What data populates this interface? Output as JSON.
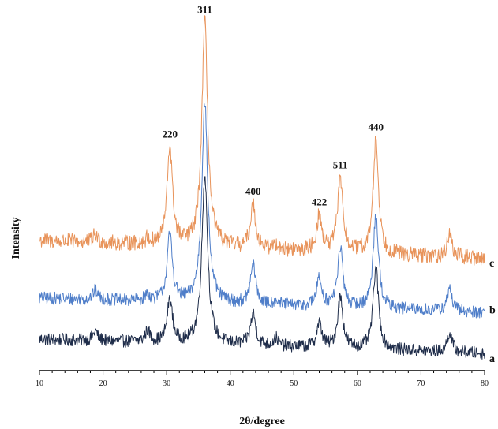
{
  "chart_data": {
    "type": "line",
    "title": "",
    "xlabel": "2θ/degree",
    "ylabel": "Intensity",
    "xlim": [
      10,
      80
    ],
    "x_ticks": [
      10,
      20,
      30,
      40,
      50,
      60,
      70,
      80
    ],
    "y_ticks": "none",
    "grid": false,
    "legend": "none",
    "series": [
      {
        "label": "a",
        "color": "#1f2d4a",
        "offset": 0
      },
      {
        "label": "b",
        "color": "#4f7ec9",
        "offset": 50
      },
      {
        "label": "c",
        "color": "#e8935a",
        "offset": 110
      }
    ],
    "peaks": [
      {
        "label": "220",
        "position": 30.5,
        "heights": [
          55,
          85,
          125
        ]
      },
      {
        "label": "311",
        "position": 36.0,
        "heights": [
          215,
          255,
          285
        ]
      },
      {
        "label": "400",
        "position": 43.6,
        "heights": [
          40,
          50,
          55
        ]
      },
      {
        "label": "422",
        "position": 54.0,
        "heights": [
          30,
          35,
          45
        ]
      },
      {
        "label": "511",
        "position": 57.3,
        "heights": [
          65,
          75,
          95
        ]
      },
      {
        "label": "440",
        "position": 62.9,
        "heights": [
          105,
          120,
          145
        ]
      }
    ],
    "minor_peaks": [
      {
        "position": 18.8,
        "heights": [
          12,
          12,
          10
        ]
      },
      {
        "position": 27.0,
        "heights": [
          14,
          8,
          6
        ]
      },
      {
        "position": 47.2,
        "heights": [
          10,
          6,
          6
        ]
      },
      {
        "position": 74.5,
        "heights": [
          25,
          28,
          30
        ]
      }
    ],
    "baseline": {
      "start": [
        30,
        32,
        45
      ],
      "end": [
        12,
        14,
        22
      ]
    }
  }
}
